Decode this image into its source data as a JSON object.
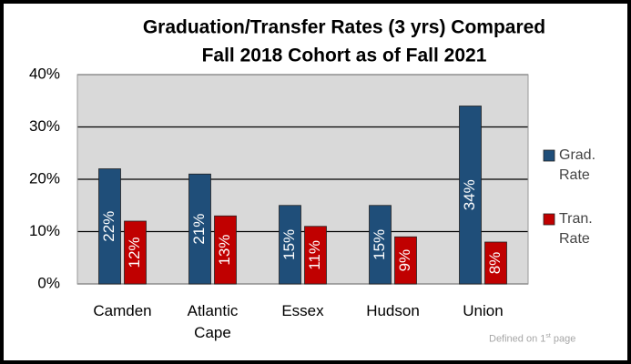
{
  "chart_data": {
    "type": "bar",
    "title": [
      "Graduation/Transfer Rates (3 yrs) Compared",
      "Fall 2018 Cohort as of Fall 2021"
    ],
    "categories": [
      "Camden",
      "Atlantic Cape",
      "Essex",
      "Hudson",
      "Union"
    ],
    "series": [
      {
        "name": "Grad. Rate",
        "color": "#1f4e79",
        "values": [
          22,
          21,
          15,
          15,
          34
        ],
        "value_labels": [
          "22%",
          "21%",
          "15%",
          "15%",
          "34%"
        ]
      },
      {
        "name": "Tran. Rate",
        "color": "#c00000",
        "values": [
          12,
          13,
          11,
          9,
          8
        ],
        "value_labels": [
          "12%",
          "13%",
          "11%",
          "9%",
          "8%"
        ]
      }
    ],
    "ylim": [
      0,
      40
    ],
    "yticks": [
      {
        "value": 0,
        "label": "0%"
      },
      {
        "value": 10,
        "label": "10%"
      },
      {
        "value": 20,
        "label": "20%"
      },
      {
        "value": 30,
        "label": "30%"
      },
      {
        "value": 40,
        "label": "40%"
      }
    ],
    "grid": true,
    "legend": "right",
    "annotation": [
      "Defined on 1",
      "st",
      " page"
    ]
  }
}
